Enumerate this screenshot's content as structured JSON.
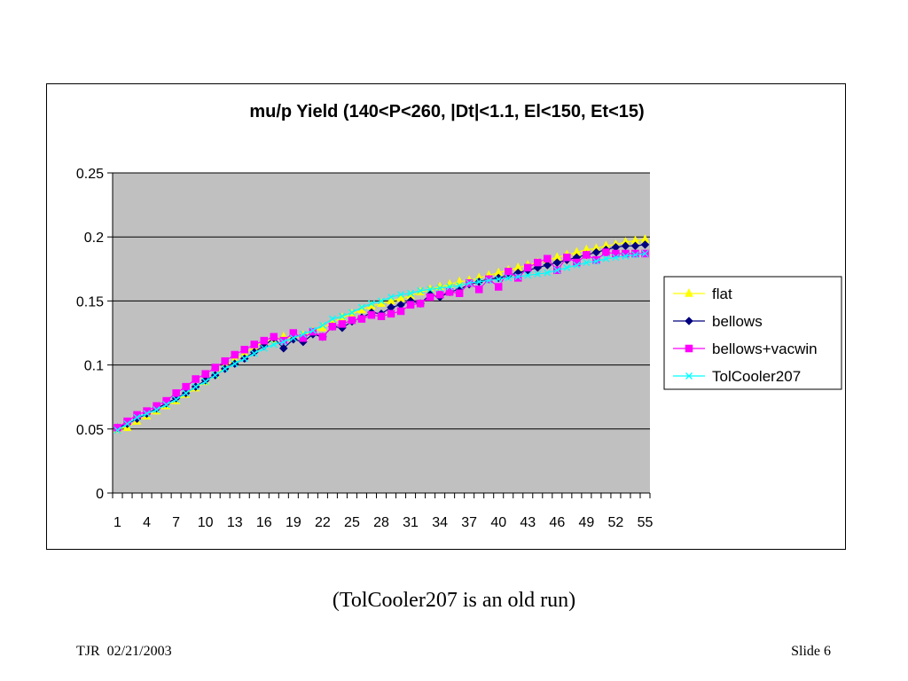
{
  "chart_data": {
    "type": "line",
    "title": "mu/p Yield (140<P<260, |Dt|<1.1, El<150, Et<15)",
    "xlabel": "",
    "ylabel": "",
    "ylim": [
      0,
      0.25
    ],
    "yticks": [
      0,
      0.05,
      0.1,
      0.15,
      0.2,
      0.25
    ],
    "ytick_labels": [
      "0",
      "0.05",
      "0.1",
      "0.15",
      "0.2",
      "0.25"
    ],
    "xlim": [
      1,
      55
    ],
    "xtick_labels": [
      "1",
      "4",
      "7",
      "10",
      "13",
      "16",
      "19",
      "22",
      "25",
      "28",
      "31",
      "34",
      "37",
      "40",
      "43",
      "46",
      "49",
      "52",
      "55"
    ],
    "grid": true,
    "plot_background": "#c0c0c0",
    "legend_position": "right",
    "series": [
      {
        "name": "flat",
        "color": "#ffff00",
        "marker": "triangle",
        "values": [
          0.05,
          0.051,
          0.056,
          0.06,
          0.064,
          0.068,
          0.072,
          0.077,
          0.082,
          0.087,
          0.092,
          0.099,
          0.104,
          0.109,
          0.114,
          0.118,
          0.12,
          0.122,
          0.121,
          0.123,
          0.126,
          0.129,
          0.133,
          0.137,
          0.14,
          0.143,
          0.146,
          0.148,
          0.15,
          0.152,
          0.154,
          0.157,
          0.159,
          0.161,
          0.163,
          0.165,
          0.166,
          0.168,
          0.17,
          0.172,
          0.174,
          0.176,
          0.178,
          0.18,
          0.182,
          0.184,
          0.186,
          0.188,
          0.19,
          0.191,
          0.193,
          0.194,
          0.196,
          0.197,
          0.198
        ]
      },
      {
        "name": "bellows",
        "color": "#000080",
        "marker": "diamond",
        "values": [
          0.051,
          0.054,
          0.058,
          0.062,
          0.066,
          0.07,
          0.074,
          0.078,
          0.083,
          0.088,
          0.092,
          0.097,
          0.101,
          0.105,
          0.11,
          0.115,
          0.121,
          0.113,
          0.12,
          0.118,
          0.124,
          0.122,
          0.13,
          0.129,
          0.134,
          0.137,
          0.141,
          0.14,
          0.145,
          0.147,
          0.15,
          0.148,
          0.155,
          0.153,
          0.157,
          0.159,
          0.163,
          0.165,
          0.167,
          0.168,
          0.17,
          0.172,
          0.174,
          0.176,
          0.178,
          0.18,
          0.182,
          0.184,
          0.186,
          0.188,
          0.19,
          0.192,
          0.193,
          0.193,
          0.194
        ]
      },
      {
        "name": "bellows+vacwin",
        "color": "#ff00ff",
        "marker": "square",
        "values": [
          0.051,
          0.056,
          0.061,
          0.064,
          0.068,
          0.072,
          0.078,
          0.083,
          0.089,
          0.093,
          0.098,
          0.103,
          0.108,
          0.112,
          0.116,
          0.119,
          0.122,
          0.119,
          0.125,
          0.121,
          0.126,
          0.122,
          0.13,
          0.132,
          0.135,
          0.136,
          0.139,
          0.138,
          0.14,
          0.142,
          0.147,
          0.148,
          0.153,
          0.155,
          0.157,
          0.156,
          0.164,
          0.159,
          0.167,
          0.161,
          0.173,
          0.168,
          0.176,
          0.18,
          0.183,
          0.174,
          0.184,
          0.18,
          0.186,
          0.182,
          0.188,
          0.187,
          0.187,
          0.187,
          0.187
        ]
      },
      {
        "name": "TolCooler207",
        "color": "#00ffff",
        "marker": "x",
        "values": [
          0.049,
          0.054,
          0.059,
          0.062,
          0.065,
          0.069,
          0.073,
          0.078,
          0.083,
          0.087,
          0.092,
          0.097,
          0.101,
          0.105,
          0.109,
          0.113,
          0.116,
          0.118,
          0.121,
          0.124,
          0.127,
          0.131,
          0.136,
          0.138,
          0.141,
          0.145,
          0.148,
          0.15,
          0.153,
          0.155,
          0.156,
          0.158,
          0.159,
          0.16,
          0.161,
          0.162,
          0.164,
          0.165,
          0.166,
          0.167,
          0.168,
          0.169,
          0.17,
          0.171,
          0.172,
          0.174,
          0.176,
          0.178,
          0.18,
          0.181,
          0.183,
          0.184,
          0.185,
          0.186,
          0.187
        ]
      }
    ]
  },
  "caption": "(TolCooler207 is an old run)",
  "footer": {
    "left": "TJR  02/21/2003",
    "right": "Slide 6"
  }
}
